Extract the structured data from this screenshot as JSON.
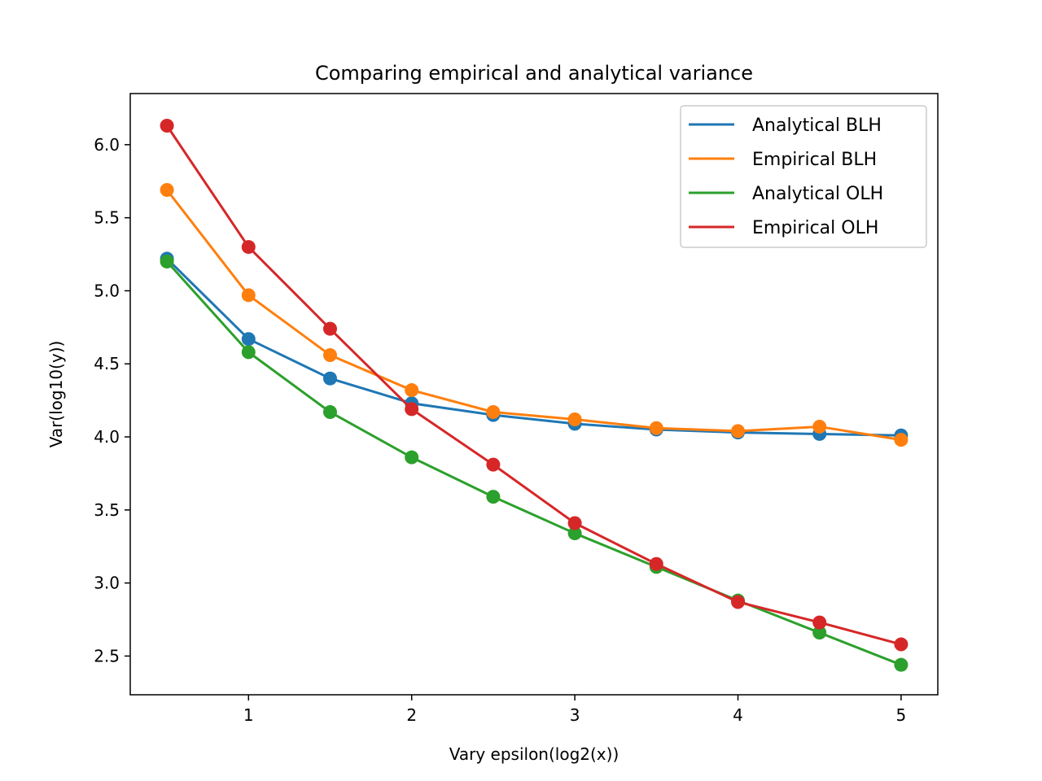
{
  "chart_data": {
    "type": "line",
    "title": "Comparing empirical and analytical variance",
    "xlabel": "Vary epsilon(log2(x))",
    "ylabel": "Var(log10(y))",
    "x": [
      0.5,
      1.0,
      1.5,
      2.0,
      2.5,
      3.0,
      3.5,
      4.0,
      4.5,
      5.0
    ],
    "xlim": [
      0.275,
      5.225
    ],
    "ylim": [
      2.235,
      6.35
    ],
    "xticks": [
      1,
      2,
      3,
      4,
      5
    ],
    "yticks": [
      2.5,
      3.0,
      3.5,
      4.0,
      4.5,
      5.0,
      5.5,
      6.0
    ],
    "xtick_labels": [
      "1",
      "2",
      "3",
      "4",
      "5"
    ],
    "ytick_labels": [
      "2.5",
      "3.0",
      "3.5",
      "4.0",
      "4.5",
      "5.0",
      "5.5",
      "6.0"
    ],
    "grid": false,
    "legend_position": "top-right",
    "series": [
      {
        "name": "Analytical BLH",
        "color": "#1f77b4",
        "values": [
          5.22,
          4.67,
          4.4,
          4.23,
          4.15,
          4.09,
          4.05,
          4.03,
          4.02,
          4.01
        ]
      },
      {
        "name": "Empirical BLH",
        "color": "#ff7f0e",
        "values": [
          5.69,
          4.97,
          4.56,
          4.32,
          4.17,
          4.12,
          4.06,
          4.04,
          4.07,
          3.98
        ]
      },
      {
        "name": "Analytical OLH",
        "color": "#2ca02c",
        "values": [
          5.2,
          4.58,
          4.17,
          3.86,
          3.59,
          3.34,
          3.11,
          2.88,
          2.66,
          2.44
        ]
      },
      {
        "name": "Empirical OLH",
        "color": "#d62728",
        "values": [
          6.13,
          5.3,
          4.74,
          4.19,
          3.81,
          3.41,
          3.13,
          2.87,
          2.73,
          2.58
        ]
      }
    ]
  }
}
